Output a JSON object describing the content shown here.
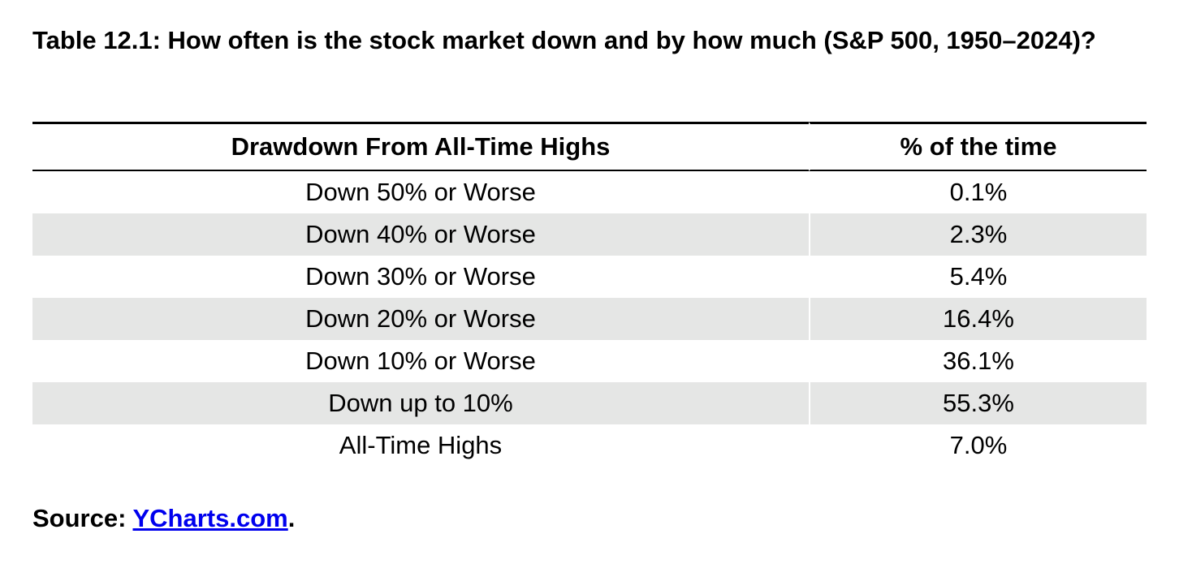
{
  "table": {
    "title": "Table 12.1: How often is the stock market down and by how much (S&P 500, 1950–2024)?",
    "headers": [
      "Drawdown From All-Time Highs",
      "% of the time"
    ],
    "rows": [
      [
        "Down 50% or Worse",
        "0.1%"
      ],
      [
        "Down 40% or Worse",
        "2.3%"
      ],
      [
        "Down 30% or Worse",
        "5.4%"
      ],
      [
        "Down 20% or Worse",
        "16.4%"
      ],
      [
        "Down 10% or Worse",
        "36.1%"
      ],
      [
        "Down up to 10%",
        "55.3%"
      ],
      [
        "All-Time Highs",
        "7.0%"
      ]
    ]
  },
  "source": {
    "label": "Source: ",
    "link_text": "YCharts.com",
    "suffix": "."
  },
  "colors": {
    "shaded_row": "#e5e6e5",
    "link": "#0000ee"
  }
}
